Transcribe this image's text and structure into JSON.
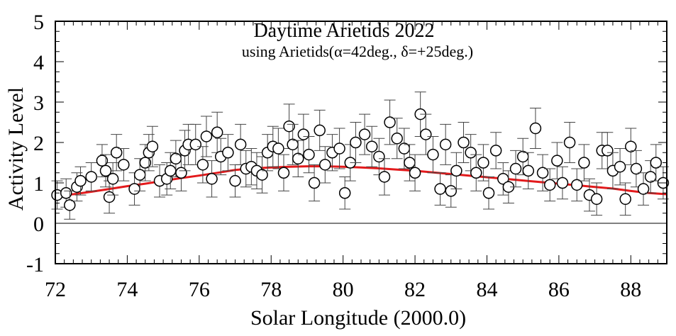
{
  "chart_data": {
    "type": "scatter",
    "title": "Daytime Arietids 2022",
    "subtitle": "using Arietids(α=42deg., δ=+25deg.)",
    "xlabel": "Solar Longitude (2000.0)",
    "ylabel": "Activity Level",
    "xlim": [
      72,
      89
    ],
    "ylim": [
      -1,
      5
    ],
    "x_ticks": [
      72,
      74,
      76,
      78,
      80,
      82,
      84,
      86,
      88
    ],
    "y_ticks": [
      -1,
      0,
      1,
      2,
      3,
      4,
      5
    ],
    "x_tick_labels": [
      "72",
      "74",
      "76",
      "78",
      "80",
      "82",
      "84",
      "86",
      "88"
    ],
    "y_tick_labels": [
      "-1",
      "0",
      "1",
      "2",
      "3",
      "4",
      "5"
    ],
    "zero_line": true,
    "grid": false,
    "colors": {
      "fit": "#e31a1c",
      "points": "#000000",
      "marker_fill": "#ffffff"
    },
    "series": [
      {
        "kind": "points_with_errorbars",
        "x": [
          72.05,
          72.3,
          72.4,
          72.6,
          72.7,
          73.0,
          73.3,
          73.4,
          73.5,
          73.6,
          73.7,
          73.9,
          74.2,
          74.35,
          74.5,
          74.6,
          74.7,
          74.9,
          75.1,
          75.2,
          75.35,
          75.5,
          75.6,
          75.7,
          75.9,
          76.1,
          76.2,
          76.35,
          76.5,
          76.6,
          76.8,
          77.0,
          77.15,
          77.3,
          77.45,
          77.6,
          77.75,
          77.9,
          78.05,
          78.2,
          78.35,
          78.5,
          78.6,
          78.75,
          78.9,
          79.05,
          79.2,
          79.35,
          79.5,
          79.7,
          79.9,
          80.05,
          80.2,
          80.35,
          80.6,
          80.8,
          81.0,
          81.15,
          81.3,
          81.5,
          81.7,
          81.85,
          82.0,
          82.15,
          82.3,
          82.5,
          82.7,
          82.85,
          83.0,
          83.15,
          83.35,
          83.55,
          83.7,
          83.9,
          84.05,
          84.25,
          84.45,
          84.6,
          84.8,
          85.0,
          85.15,
          85.35,
          85.55,
          85.75,
          85.95,
          86.1,
          86.3,
          86.5,
          86.7,
          86.85,
          87.05,
          87.2,
          87.35,
          87.5,
          87.7,
          87.85,
          88.0,
          88.15,
          88.35,
          88.55,
          88.7,
          88.9
        ],
        "y": [
          0.7,
          0.75,
          0.45,
          0.9,
          1.05,
          1.15,
          1.55,
          1.3,
          0.65,
          1.1,
          1.75,
          1.45,
          0.85,
          1.2,
          1.5,
          1.75,
          1.9,
          1.05,
          1.1,
          1.3,
          1.6,
          1.25,
          1.8,
          1.95,
          1.95,
          1.45,
          2.15,
          1.1,
          2.25,
          1.65,
          1.75,
          1.05,
          1.95,
          1.35,
          1.4,
          1.3,
          1.2,
          1.75,
          1.9,
          1.85,
          1.25,
          2.4,
          1.95,
          1.6,
          2.2,
          1.7,
          1.0,
          2.3,
          1.45,
          1.75,
          1.85,
          0.75,
          1.5,
          2.0,
          2.2,
          1.9,
          1.65,
          1.15,
          2.5,
          2.1,
          1.85,
          1.5,
          1.25,
          2.7,
          2.2,
          1.7,
          0.85,
          1.95,
          0.8,
          1.3,
          2.0,
          1.75,
          1.25,
          1.5,
          0.75,
          1.8,
          1.1,
          0.9,
          1.35,
          1.65,
          1.3,
          2.35,
          1.25,
          0.95,
          1.55,
          1.0,
          2.0,
          0.95,
          1.5,
          0.7,
          0.6,
          1.8,
          1.8,
          1.3,
          1.4,
          0.6,
          1.9,
          1.35,
          0.85,
          1.15,
          1.5,
          1.0
        ],
        "yerr": [
          0.35,
          0.35,
          0.35,
          0.35,
          0.35,
          0.35,
          0.4,
          0.4,
          0.4,
          0.4,
          0.45,
          0.4,
          0.4,
          0.4,
          0.45,
          0.45,
          0.5,
          0.4,
          0.4,
          0.45,
          0.45,
          0.45,
          0.5,
          0.5,
          0.5,
          0.45,
          0.5,
          0.45,
          0.5,
          0.45,
          0.45,
          0.4,
          0.5,
          0.45,
          0.45,
          0.45,
          0.45,
          0.45,
          0.5,
          0.5,
          0.45,
          0.55,
          0.5,
          0.45,
          0.5,
          0.45,
          0.45,
          0.5,
          0.45,
          0.45,
          0.5,
          0.4,
          0.45,
          0.5,
          0.5,
          0.5,
          0.45,
          0.45,
          0.55,
          0.5,
          0.5,
          0.45,
          0.45,
          0.55,
          0.5,
          0.45,
          0.4,
          0.5,
          0.4,
          0.45,
          0.5,
          0.45,
          0.45,
          0.45,
          0.4,
          0.45,
          0.4,
          0.4,
          0.45,
          0.45,
          0.45,
          0.5,
          0.45,
          0.4,
          0.45,
          0.4,
          0.5,
          0.4,
          0.45,
          0.4,
          0.4,
          0.45,
          0.45,
          0.45,
          0.45,
          0.4,
          0.45,
          0.45,
          0.4,
          0.4,
          0.45,
          0.4
        ]
      },
      {
        "kind": "fit_curve",
        "x": [
          72.0,
          72.5,
          73.0,
          73.5,
          74.0,
          74.5,
          75.0,
          75.5,
          76.0,
          76.5,
          77.0,
          77.5,
          78.0,
          78.5,
          79.0,
          79.5,
          80.0,
          80.5,
          81.0,
          81.5,
          82.0,
          82.5,
          83.0,
          83.5,
          84.0,
          84.5,
          85.0,
          85.5,
          86.0,
          86.5,
          87.0,
          87.5,
          88.0,
          88.5,
          89.0
        ],
        "y": [
          0.7,
          0.72,
          0.78,
          0.85,
          0.92,
          0.98,
          1.05,
          1.12,
          1.18,
          1.25,
          1.32,
          1.36,
          1.38,
          1.4,
          1.41,
          1.41,
          1.4,
          1.38,
          1.36,
          1.33,
          1.3,
          1.26,
          1.22,
          1.18,
          1.14,
          1.1,
          1.06,
          1.02,
          0.98,
          0.94,
          0.9,
          0.86,
          0.8,
          0.75,
          0.72
        ]
      }
    ]
  }
}
